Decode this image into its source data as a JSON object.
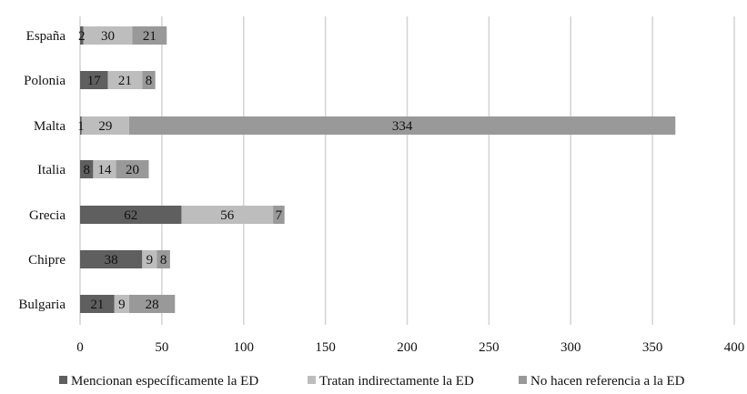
{
  "chart_data": {
    "type": "bar",
    "orientation": "horizontal",
    "stacked": true,
    "title": "",
    "xlabel": "",
    "ylabel": "",
    "categories": [
      "España",
      "Polonia",
      "Malta",
      "Italia",
      "Grecia",
      "Chipre",
      "Bulgaria"
    ],
    "series": [
      {
        "name": "Mencionan específicamente la ED",
        "color": "#5f5f5f",
        "values": [
          2,
          17,
          1,
          8,
          62,
          38,
          21
        ]
      },
      {
        "name": "Tratan indirectamente la ED",
        "color": "#bdbdbd",
        "values": [
          30,
          21,
          29,
          14,
          56,
          9,
          9
        ]
      },
      {
        "name": "No hacen referencia a la ED",
        "color": "#999999",
        "values": [
          21,
          8,
          334,
          20,
          7,
          8,
          28
        ]
      }
    ],
    "xlim": [
      0,
      400
    ],
    "xticks": [
      0,
      50,
      100,
      150,
      200,
      250,
      300,
      350,
      400
    ],
    "grid": true,
    "legend": "bottom"
  }
}
